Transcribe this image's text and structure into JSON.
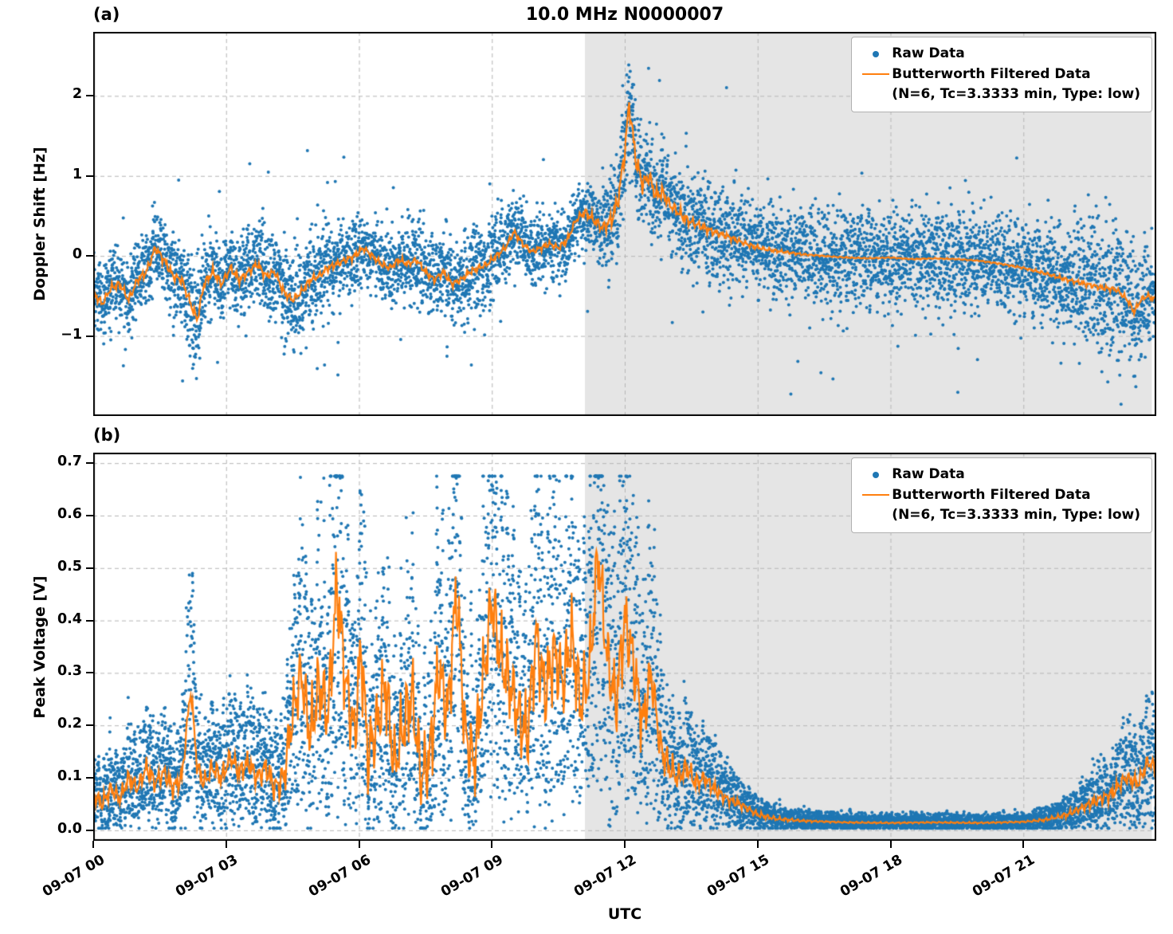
{
  "chart_data": {
    "type": "scatter",
    "title": "10.0 MHz N0000007",
    "xlabel": "UTC",
    "grid": true,
    "legend_position": "upper right",
    "x_range_hours": [
      0,
      24
    ],
    "xticks": [
      {
        "v": 0,
        "label": "09-07 00"
      },
      {
        "v": 3,
        "label": "09-07 03"
      },
      {
        "v": 6,
        "label": "09-07 06"
      },
      {
        "v": 9,
        "label": "09-07 09"
      },
      {
        "v": 12,
        "label": "09-07 12"
      },
      {
        "v": 15,
        "label": "09-07 15"
      },
      {
        "v": 18,
        "label": "09-07 18"
      },
      {
        "v": 21,
        "label": "09-07 21"
      }
    ],
    "shaded_region": {
      "x_start": 11.1,
      "x_end": 23.9,
      "color": "#e5e5e5"
    },
    "colors": {
      "raw": "#1f77b4",
      "filtered": "#ff7f0e",
      "grid": "#b5b5b5"
    },
    "legend": {
      "raw_label": "Raw Data",
      "filtered_label": "Butterworth Filtered Data",
      "filtered_sublabel": "(N=6, Tc=3.3333 min, Type: low)"
    },
    "panels": [
      {
        "panel_label": "(a)",
        "ylabel": "Doppler Shift [Hz]",
        "ylim": [
          -2.0,
          2.8
        ],
        "yticks": [
          {
            "v": -1,
            "label": "−1"
          },
          {
            "v": 0,
            "label": "0"
          },
          {
            "v": 1,
            "label": "1"
          },
          {
            "v": 2,
            "label": "2"
          }
        ],
        "raw_points_count": 7500,
        "outlier_fraction": 0.012,
        "filtered_curve": [
          [
            0,
            -0.45
          ],
          [
            0.2,
            -0.6
          ],
          [
            0.4,
            -0.4
          ],
          [
            0.6,
            -0.35
          ],
          [
            0.8,
            -0.55
          ],
          [
            1.0,
            -0.3
          ],
          [
            1.2,
            -0.2
          ],
          [
            1.4,
            0.1
          ],
          [
            1.6,
            -0.05
          ],
          [
            1.8,
            -0.25
          ],
          [
            2.0,
            -0.3
          ],
          [
            2.2,
            -0.6
          ],
          [
            2.35,
            -0.8
          ],
          [
            2.5,
            -0.35
          ],
          [
            2.7,
            -0.2
          ],
          [
            2.9,
            -0.35
          ],
          [
            3.1,
            -0.15
          ],
          [
            3.3,
            -0.3
          ],
          [
            3.5,
            -0.2
          ],
          [
            3.7,
            -0.1
          ],
          [
            3.9,
            -0.25
          ],
          [
            4.1,
            -0.2
          ],
          [
            4.3,
            -0.45
          ],
          [
            4.5,
            -0.55
          ],
          [
            4.7,
            -0.45
          ],
          [
            4.9,
            -0.3
          ],
          [
            5.1,
            -0.25
          ],
          [
            5.3,
            -0.15
          ],
          [
            5.5,
            -0.1
          ],
          [
            5.7,
            -0.05
          ],
          [
            5.9,
            0.0
          ],
          [
            6.1,
            0.1
          ],
          [
            6.3,
            0.0
          ],
          [
            6.5,
            -0.1
          ],
          [
            6.7,
            -0.15
          ],
          [
            6.9,
            -0.05
          ],
          [
            7.1,
            -0.1
          ],
          [
            7.3,
            -0.05
          ],
          [
            7.5,
            -0.2
          ],
          [
            7.7,
            -0.3
          ],
          [
            7.9,
            -0.2
          ],
          [
            8.1,
            -0.35
          ],
          [
            8.3,
            -0.3
          ],
          [
            8.5,
            -0.2
          ],
          [
            8.7,
            -0.15
          ],
          [
            8.9,
            -0.1
          ],
          [
            9.1,
            0.0
          ],
          [
            9.3,
            0.1
          ],
          [
            9.5,
            0.3
          ],
          [
            9.7,
            0.15
          ],
          [
            9.9,
            0.05
          ],
          [
            10.1,
            0.1
          ],
          [
            10.3,
            0.15
          ],
          [
            10.5,
            0.1
          ],
          [
            10.7,
            0.2
          ],
          [
            10.9,
            0.45
          ],
          [
            11.1,
            0.55
          ],
          [
            11.3,
            0.45
          ],
          [
            11.5,
            0.35
          ],
          [
            11.7,
            0.45
          ],
          [
            11.85,
            0.7
          ],
          [
            12.0,
            1.3
          ],
          [
            12.1,
            1.9
          ],
          [
            12.25,
            1.2
          ],
          [
            12.4,
            0.9
          ],
          [
            12.55,
            1.0
          ],
          [
            12.7,
            0.75
          ],
          [
            12.85,
            0.8
          ],
          [
            13.0,
            0.65
          ],
          [
            13.2,
            0.55
          ],
          [
            13.4,
            0.45
          ],
          [
            13.6,
            0.4
          ],
          [
            13.8,
            0.35
          ],
          [
            14.0,
            0.3
          ],
          [
            14.3,
            0.25
          ],
          [
            14.6,
            0.18
          ],
          [
            14.9,
            0.12
          ],
          [
            15.2,
            0.08
          ],
          [
            15.6,
            0.05
          ],
          [
            16.0,
            0.02
          ],
          [
            16.5,
            0.0
          ],
          [
            17.0,
            -0.02
          ],
          [
            17.5,
            -0.03
          ],
          [
            18.0,
            -0.02
          ],
          [
            18.5,
            -0.04
          ],
          [
            19.0,
            -0.03
          ],
          [
            19.5,
            -0.04
          ],
          [
            20.0,
            -0.06
          ],
          [
            20.5,
            -0.1
          ],
          [
            21.0,
            -0.15
          ],
          [
            21.5,
            -0.22
          ],
          [
            22.0,
            -0.3
          ],
          [
            22.4,
            -0.35
          ],
          [
            22.8,
            -0.4
          ],
          [
            23.1,
            -0.42
          ],
          [
            23.35,
            -0.55
          ],
          [
            23.5,
            -0.7
          ],
          [
            23.65,
            -0.55
          ],
          [
            23.8,
            -0.5
          ],
          [
            24.0,
            -0.55
          ]
        ],
        "raw_sigma": [
          [
            0,
            0.22
          ],
          [
            1,
            0.22
          ],
          [
            2.1,
            0.28
          ],
          [
            2.35,
            0.4
          ],
          [
            2.6,
            0.25
          ],
          [
            3.5,
            0.22
          ],
          [
            4.4,
            0.3
          ],
          [
            4.8,
            0.35
          ],
          [
            5.2,
            0.25
          ],
          [
            6,
            0.2
          ],
          [
            7,
            0.22
          ],
          [
            8,
            0.25
          ],
          [
            8.7,
            0.28
          ],
          [
            9.5,
            0.22
          ],
          [
            10.5,
            0.2
          ],
          [
            11.3,
            0.22
          ],
          [
            11.9,
            0.3
          ],
          [
            12.1,
            0.35
          ],
          [
            12.6,
            0.3
          ],
          [
            13.2,
            0.3
          ],
          [
            14,
            0.3
          ],
          [
            15,
            0.28
          ],
          [
            16,
            0.28
          ],
          [
            17,
            0.3
          ],
          [
            18,
            0.3
          ],
          [
            19,
            0.3
          ],
          [
            20,
            0.3
          ],
          [
            21,
            0.3
          ],
          [
            22,
            0.35
          ],
          [
            23,
            0.42
          ],
          [
            23.6,
            0.35
          ],
          [
            24,
            0.3
          ]
        ],
        "line_wiggle": [
          [
            0,
            0.07
          ],
          [
            2,
            0.08
          ],
          [
            4,
            0.07
          ],
          [
            6,
            0.06
          ],
          [
            8,
            0.06
          ],
          [
            10,
            0.05
          ],
          [
            10.8,
            0.06
          ],
          [
            11.5,
            0.1
          ],
          [
            12,
            0.18
          ],
          [
            12.8,
            0.12
          ],
          [
            13.5,
            0.08
          ],
          [
            14.5,
            0.05
          ],
          [
            15.5,
            0.03
          ],
          [
            16.5,
            0.01
          ],
          [
            20,
            0.01
          ],
          [
            21,
            0.02
          ],
          [
            22,
            0.04
          ],
          [
            23,
            0.05
          ],
          [
            24,
            0.05
          ]
        ]
      },
      {
        "panel_label": "(b)",
        "ylabel": "Peak Voltage [V]",
        "ylim": [
          -0.02,
          0.72
        ],
        "yticks": [
          {
            "v": 0.0,
            "label": "0.0"
          },
          {
            "v": 0.1,
            "label": "0.1"
          },
          {
            "v": 0.2,
            "label": "0.2"
          },
          {
            "v": 0.3,
            "label": "0.3"
          },
          {
            "v": 0.4,
            "label": "0.4"
          },
          {
            "v": 0.5,
            "label": "0.5"
          },
          {
            "v": 0.6,
            "label": "0.6"
          },
          {
            "v": 0.7,
            "label": "0.7"
          }
        ],
        "raw_points_count": 9000,
        "raw_mult_range": [
          0.25,
          1.95
        ],
        "val_clamp": [
          0.004,
          0.675
        ],
        "filtered_curve": [
          [
            0,
            0.07
          ],
          [
            0.2,
            0.05
          ],
          [
            0.4,
            0.08
          ],
          [
            0.6,
            0.06
          ],
          [
            0.8,
            0.1
          ],
          [
            1.0,
            0.08
          ],
          [
            1.2,
            0.12
          ],
          [
            1.4,
            0.09
          ],
          [
            1.6,
            0.11
          ],
          [
            1.8,
            0.08
          ],
          [
            2.0,
            0.1
          ],
          [
            2.2,
            0.27
          ],
          [
            2.35,
            0.12
          ],
          [
            2.5,
            0.09
          ],
          [
            2.7,
            0.12
          ],
          [
            2.9,
            0.1
          ],
          [
            3.1,
            0.14
          ],
          [
            3.3,
            0.11
          ],
          [
            3.5,
            0.13
          ],
          [
            3.7,
            0.1
          ],
          [
            3.9,
            0.12
          ],
          [
            4.1,
            0.08
          ],
          [
            4.3,
            0.1
          ],
          [
            4.5,
            0.22
          ],
          [
            4.7,
            0.3
          ],
          [
            4.9,
            0.18
          ],
          [
            5.1,
            0.28
          ],
          [
            5.3,
            0.22
          ],
          [
            5.5,
            0.47
          ],
          [
            5.7,
            0.28
          ],
          [
            5.9,
            0.18
          ],
          [
            6.05,
            0.35
          ],
          [
            6.2,
            0.14
          ],
          [
            6.4,
            0.2
          ],
          [
            6.6,
            0.28
          ],
          [
            6.8,
            0.12
          ],
          [
            7.0,
            0.2
          ],
          [
            7.2,
            0.26
          ],
          [
            7.4,
            0.1
          ],
          [
            7.6,
            0.14
          ],
          [
            7.8,
            0.31
          ],
          [
            8.0,
            0.22
          ],
          [
            8.2,
            0.46
          ],
          [
            8.4,
            0.18
          ],
          [
            8.6,
            0.13
          ],
          [
            8.8,
            0.28
          ],
          [
            9.0,
            0.44
          ],
          [
            9.2,
            0.33
          ],
          [
            9.4,
            0.28
          ],
          [
            9.6,
            0.22
          ],
          [
            9.8,
            0.18
          ],
          [
            10.0,
            0.37
          ],
          [
            10.2,
            0.26
          ],
          [
            10.4,
            0.34
          ],
          [
            10.6,
            0.28
          ],
          [
            10.8,
            0.37
          ],
          [
            11.0,
            0.24
          ],
          [
            11.2,
            0.3
          ],
          [
            11.4,
            0.53
          ],
          [
            11.6,
            0.33
          ],
          [
            11.8,
            0.24
          ],
          [
            12.0,
            0.4
          ],
          [
            12.2,
            0.32
          ],
          [
            12.4,
            0.2
          ],
          [
            12.6,
            0.3
          ],
          [
            12.8,
            0.16
          ],
          [
            13.0,
            0.12
          ],
          [
            13.2,
            0.1
          ],
          [
            13.4,
            0.12
          ],
          [
            13.6,
            0.09
          ],
          [
            13.8,
            0.1
          ],
          [
            14.0,
            0.08
          ],
          [
            14.3,
            0.06
          ],
          [
            14.6,
            0.05
          ],
          [
            15.0,
            0.03
          ],
          [
            15.4,
            0.022
          ],
          [
            16.0,
            0.018
          ],
          [
            17.0,
            0.015
          ],
          [
            18.0,
            0.014
          ],
          [
            19.0,
            0.015
          ],
          [
            20.0,
            0.014
          ],
          [
            21.0,
            0.016
          ],
          [
            21.5,
            0.02
          ],
          [
            22.0,
            0.03
          ],
          [
            22.5,
            0.05
          ],
          [
            23.0,
            0.07
          ],
          [
            23.3,
            0.1
          ],
          [
            23.6,
            0.09
          ],
          [
            23.8,
            0.13
          ],
          [
            24.0,
            0.12
          ]
        ],
        "raw_additive_sigma": [
          [
            0,
            0.02
          ],
          [
            4,
            0.025
          ],
          [
            5,
            0.04
          ],
          [
            12,
            0.04
          ],
          [
            13,
            0.03
          ],
          [
            14,
            0.015
          ],
          [
            15,
            0.008
          ],
          [
            16,
            0.004
          ],
          [
            21,
            0.004
          ],
          [
            21.8,
            0.006
          ],
          [
            22.5,
            0.01
          ],
          [
            23.2,
            0.018
          ],
          [
            24,
            0.025
          ]
        ],
        "line_wiggle": [
          [
            0,
            0.02
          ],
          [
            2,
            0.025
          ],
          [
            4,
            0.03
          ],
          [
            4.6,
            0.08
          ],
          [
            5.2,
            0.1
          ],
          [
            8,
            0.1
          ],
          [
            11,
            0.1
          ],
          [
            12.2,
            0.09
          ],
          [
            12.8,
            0.05
          ],
          [
            13.5,
            0.025
          ],
          [
            14.5,
            0.012
          ],
          [
            15.5,
            0.005
          ],
          [
            16.5,
            0.002
          ],
          [
            21,
            0.002
          ],
          [
            21.6,
            0.005
          ],
          [
            22.2,
            0.01
          ],
          [
            23,
            0.018
          ],
          [
            24,
            0.02
          ]
        ]
      }
    ]
  }
}
